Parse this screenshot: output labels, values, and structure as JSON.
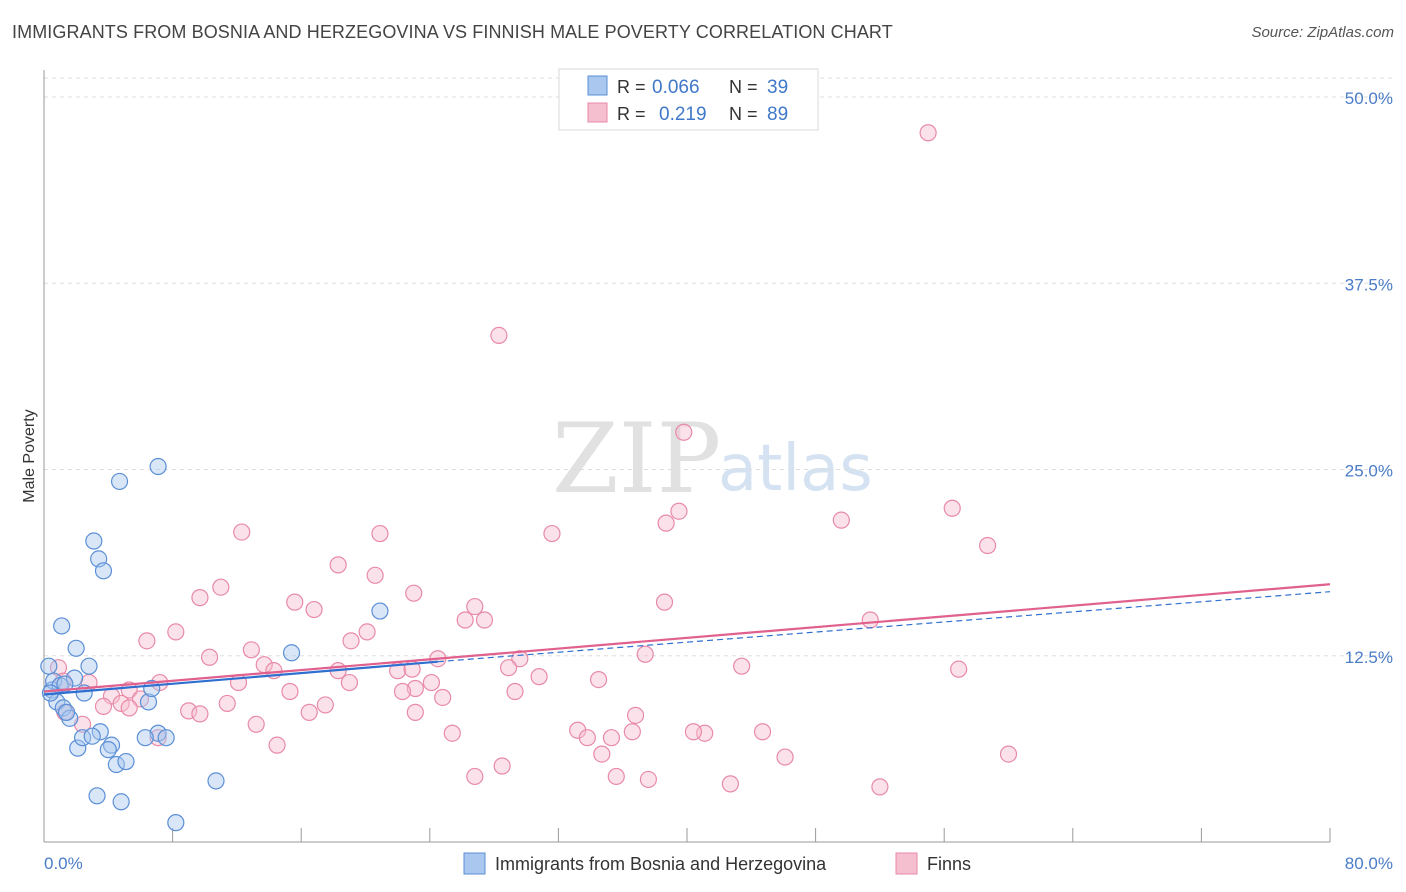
{
  "header": {
    "title": "IMMIGRANTS FROM BOSNIA AND HERZEGOVINA VS FINNISH MALE POVERTY CORRELATION CHART",
    "source": "Source: ZipAtlas.com"
  },
  "watermark": {
    "zip": "ZIP",
    "atlas": "atlas"
  },
  "colors": {
    "blue_fill": "#a9c7ef",
    "blue_stroke": "#5b8fd6",
    "blue_line": "#2f6fd0",
    "pink_fill": "#f6bfd0",
    "pink_stroke": "#e88aa8",
    "pink_line": "#e0608e",
    "grid": "#dddddd",
    "tick_text": "#4a7cc7"
  },
  "legend": {
    "rows": [
      {
        "r_label": "R =",
        "r_value": "0.066",
        "n_label": "N =",
        "n_value": "39"
      },
      {
        "r_label": "R =",
        "r_value": "0.219",
        "n_label": "N =",
        "n_value": "89"
      }
    ]
  },
  "chart_data": {
    "type": "scatter",
    "title": "IMMIGRANTS FROM BOSNIA AND HERZEGOVINA VS FINNISH MALE POVERTY CORRELATION CHART",
    "xlabel": "",
    "ylabel": "Male Poverty",
    "xlim": [
      0,
      80
    ],
    "ylim": [
      0,
      52
    ],
    "x_tick_labels": {
      "min": "0.0%",
      "max": "80.0%"
    },
    "y_ticks": [
      12.5,
      25.0,
      37.5,
      50.0
    ],
    "y_tick_labels": [
      "12.5%",
      "25.0%",
      "37.5%",
      "50.0%"
    ],
    "series": [
      {
        "name": "Immigrants from Bosnia and Herzegovina",
        "r": 0.066,
        "n": 39,
        "trend": {
          "x0": 0,
          "y0": 9.9,
          "x1": 24.5,
          "y1": 12.1,
          "dash_to_x": 80,
          "dash_to_y": 16.8
        },
        "points": [
          [
            0.3,
            11.8
          ],
          [
            0.5,
            10.2
          ],
          [
            0.6,
            10.8
          ],
          [
            0.8,
            9.4
          ],
          [
            1.0,
            10.5
          ],
          [
            1.2,
            9.0
          ],
          [
            1.1,
            14.5
          ],
          [
            1.6,
            8.3
          ],
          [
            1.4,
            8.7
          ],
          [
            1.9,
            11.0
          ],
          [
            2.0,
            13.0
          ],
          [
            2.5,
            10.0
          ],
          [
            2.8,
            11.8
          ],
          [
            2.1,
            6.3
          ],
          [
            2.4,
            7.0
          ],
          [
            3.1,
            20.2
          ],
          [
            3.4,
            19.0
          ],
          [
            3.7,
            18.2
          ],
          [
            3.5,
            7.4
          ],
          [
            3.0,
            7.1
          ],
          [
            4.2,
            6.5
          ],
          [
            4.0,
            6.2
          ],
          [
            4.5,
            5.2
          ],
          [
            5.1,
            5.4
          ],
          [
            4.7,
            24.2
          ],
          [
            7.1,
            25.2
          ],
          [
            6.5,
            9.4
          ],
          [
            6.7,
            10.3
          ],
          [
            7.1,
            7.3
          ],
          [
            6.3,
            7.0
          ],
          [
            7.6,
            7.0
          ],
          [
            3.3,
            3.1
          ],
          [
            4.8,
            2.7
          ],
          [
            8.2,
            1.3
          ],
          [
            10.7,
            4.1
          ],
          [
            15.4,
            12.7
          ],
          [
            20.9,
            15.5
          ],
          [
            0.4,
            10.0
          ],
          [
            1.3,
            10.6
          ]
        ]
      },
      {
        "name": "Finns",
        "r": 0.219,
        "n": 89,
        "trend": {
          "x0": 0,
          "y0": 10.1,
          "x1": 80,
          "y1": 17.3
        },
        "points": [
          [
            55.0,
            47.6
          ],
          [
            28.3,
            34.0
          ],
          [
            39.8,
            27.5
          ],
          [
            38.7,
            21.4
          ],
          [
            39.5,
            22.2
          ],
          [
            49.6,
            21.6
          ],
          [
            56.5,
            22.4
          ],
          [
            58.7,
            19.9
          ],
          [
            12.3,
            20.8
          ],
          [
            20.9,
            20.7
          ],
          [
            31.6,
            20.7
          ],
          [
            18.3,
            18.6
          ],
          [
            20.6,
            17.9
          ],
          [
            11.0,
            17.1
          ],
          [
            9.7,
            16.4
          ],
          [
            15.6,
            16.1
          ],
          [
            16.8,
            15.6
          ],
          [
            23.0,
            16.7
          ],
          [
            26.8,
            15.8
          ],
          [
            38.6,
            16.1
          ],
          [
            51.4,
            14.9
          ],
          [
            26.2,
            14.9
          ],
          [
            27.4,
            14.9
          ],
          [
            20.1,
            14.1
          ],
          [
            8.2,
            14.1
          ],
          [
            19.1,
            13.5
          ],
          [
            6.4,
            13.5
          ],
          [
            12.9,
            12.9
          ],
          [
            10.3,
            12.4
          ],
          [
            24.5,
            12.3
          ],
          [
            29.6,
            12.3
          ],
          [
            37.4,
            12.6
          ],
          [
            43.4,
            11.8
          ],
          [
            56.9,
            11.6
          ],
          [
            13.7,
            11.9
          ],
          [
            14.3,
            11.5
          ],
          [
            18.3,
            11.5
          ],
          [
            22.0,
            11.5
          ],
          [
            22.9,
            11.6
          ],
          [
            28.9,
            11.7
          ],
          [
            30.8,
            11.1
          ],
          [
            34.5,
            10.9
          ],
          [
            0.9,
            11.7
          ],
          [
            1.2,
            10.8
          ],
          [
            2.8,
            10.7
          ],
          [
            4.2,
            9.8
          ],
          [
            5.3,
            10.2
          ],
          [
            7.2,
            10.7
          ],
          [
            12.1,
            10.7
          ],
          [
            19.0,
            10.7
          ],
          [
            23.1,
            10.3
          ],
          [
            24.1,
            10.7
          ],
          [
            15.3,
            10.1
          ],
          [
            22.3,
            10.1
          ],
          [
            29.3,
            10.1
          ],
          [
            24.8,
            9.7
          ],
          [
            6.0,
            9.6
          ],
          [
            3.7,
            9.1
          ],
          [
            4.8,
            9.3
          ],
          [
            5.3,
            9.0
          ],
          [
            11.4,
            9.3
          ],
          [
            17.5,
            9.2
          ],
          [
            9.0,
            8.8
          ],
          [
            9.7,
            8.6
          ],
          [
            16.5,
            8.7
          ],
          [
            23.1,
            8.7
          ],
          [
            36.8,
            8.5
          ],
          [
            2.4,
            7.9
          ],
          [
            1.3,
            8.7
          ],
          [
            13.2,
            7.9
          ],
          [
            33.2,
            7.5
          ],
          [
            36.6,
            7.4
          ],
          [
            41.1,
            7.3
          ],
          [
            44.7,
            7.4
          ],
          [
            25.4,
            7.3
          ],
          [
            33.8,
            7.0
          ],
          [
            35.3,
            7.0
          ],
          [
            40.4,
            7.4
          ],
          [
            7.1,
            7.0
          ],
          [
            14.5,
            6.5
          ],
          [
            34.7,
            5.9
          ],
          [
            46.1,
            5.7
          ],
          [
            60.0,
            5.9
          ],
          [
            28.5,
            5.1
          ],
          [
            26.8,
            4.4
          ],
          [
            35.6,
            4.4
          ],
          [
            37.6,
            4.2
          ],
          [
            42.7,
            3.9
          ],
          [
            52.0,
            3.7
          ]
        ]
      }
    ]
  },
  "bottom_legend": {
    "items": [
      "Immigrants from Bosnia and Herzegovina",
      "Finns"
    ]
  }
}
